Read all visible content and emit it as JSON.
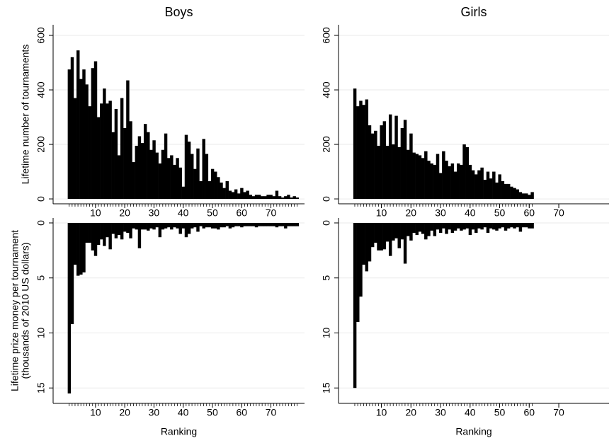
{
  "chart_data": [
    {
      "type": "bar",
      "title": "Boys",
      "ylabel": [
        "Lifetime number of tournaments"
      ],
      "color": "#000000",
      "grid": true,
      "x": [
        1,
        2,
        3,
        4,
        5,
        6,
        7,
        8,
        9,
        10,
        11,
        12,
        13,
        14,
        15,
        16,
        17,
        18,
        19,
        20,
        21,
        22,
        23,
        24,
        25,
        26,
        27,
        28,
        29,
        30,
        31,
        32,
        33,
        34,
        35,
        36,
        37,
        38,
        39,
        40,
        41,
        42,
        43,
        44,
        45,
        46,
        47,
        48,
        49,
        50,
        51,
        52,
        53,
        54,
        55,
        56,
        57,
        58,
        59,
        60,
        61,
        62,
        63,
        64,
        65,
        66,
        67,
        68,
        69,
        70,
        71,
        72,
        73,
        74,
        75,
        76,
        77,
        78,
        79
      ],
      "values": [
        475,
        520,
        370,
        545,
        440,
        475,
        420,
        340,
        480,
        505,
        300,
        350,
        405,
        350,
        360,
        245,
        330,
        160,
        370,
        260,
        435,
        285,
        135,
        195,
        230,
        205,
        275,
        245,
        180,
        215,
        170,
        130,
        180,
        240,
        150,
        160,
        125,
        150,
        115,
        45,
        235,
        210,
        165,
        110,
        185,
        65,
        220,
        165,
        65,
        110,
        100,
        80,
        60,
        40,
        65,
        30,
        25,
        35,
        20,
        40,
        25,
        30,
        15,
        10,
        15,
        15,
        10,
        10,
        15,
        15,
        10,
        30,
        10,
        5,
        10,
        15,
        5,
        10,
        5
      ],
      "xlim": [
        -4.5,
        81.5
      ],
      "xticks": [
        10,
        20,
        30,
        40,
        50,
        60,
        70
      ],
      "ylim": [
        -18,
        639
      ],
      "yticks": [
        0,
        200,
        400,
        600
      ]
    },
    {
      "type": "bar",
      "title": "Girls",
      "color": "#000000",
      "grid": true,
      "x": [
        1,
        2,
        3,
        4,
        5,
        6,
        7,
        8,
        9,
        10,
        11,
        12,
        13,
        14,
        15,
        16,
        17,
        18,
        19,
        20,
        21,
        22,
        23,
        24,
        25,
        26,
        27,
        28,
        29,
        30,
        31,
        32,
        33,
        34,
        35,
        36,
        37,
        38,
        39,
        40,
        41,
        42,
        43,
        44,
        45,
        46,
        47,
        48,
        49,
        50,
        51,
        52,
        53,
        54,
        55,
        56,
        57,
        58,
        59,
        60,
        61
      ],
      "values": [
        405,
        340,
        360,
        345,
        365,
        270,
        240,
        250,
        195,
        270,
        285,
        195,
        310,
        200,
        305,
        190,
        260,
        290,
        180,
        240,
        170,
        165,
        160,
        150,
        175,
        140,
        130,
        125,
        165,
        95,
        175,
        140,
        120,
        130,
        100,
        130,
        125,
        200,
        190,
        125,
        105,
        90,
        105,
        115,
        70,
        100,
        75,
        100,
        60,
        90,
        65,
        55,
        55,
        45,
        40,
        35,
        25,
        20,
        20,
        15,
        25
      ],
      "xlim": [
        -4.5,
        87
      ],
      "xticks": [
        10,
        20,
        30,
        40,
        50,
        60,
        70
      ],
      "ylim": [
        -18,
        639
      ],
      "yticks": [
        0,
        200,
        400,
        600
      ]
    },
    {
      "type": "bar",
      "ylabel": [
        "Lifetime prize money per tournament",
        "(thousands of 2010 US dollars)"
      ],
      "xlabel": "Ranking",
      "color": "#000000",
      "grid": true,
      "y_reversed": true,
      "x": [
        1,
        2,
        3,
        4,
        5,
        6,
        7,
        8,
        9,
        10,
        11,
        12,
        13,
        14,
        15,
        16,
        17,
        18,
        19,
        20,
        21,
        22,
        23,
        24,
        25,
        26,
        27,
        28,
        29,
        30,
        31,
        32,
        33,
        34,
        35,
        36,
        37,
        38,
        39,
        40,
        41,
        42,
        43,
        44,
        45,
        46,
        47,
        48,
        49,
        50,
        51,
        52,
        53,
        54,
        55,
        56,
        57,
        58,
        59,
        60,
        61,
        62,
        63,
        64,
        65,
        66,
        67,
        68,
        69,
        70,
        71,
        72,
        73,
        74,
        75,
        76,
        77,
        78,
        79
      ],
      "values": [
        15.5,
        9.2,
        3.8,
        4.8,
        4.7,
        4.5,
        1.8,
        1.8,
        2.5,
        3.0,
        2.0,
        1.5,
        2.1,
        1.3,
        2.4,
        1.0,
        1.4,
        1.1,
        1.5,
        0.8,
        0.9,
        1.4,
        0.5,
        0.6,
        2.3,
        0.6,
        0.6,
        0.7,
        0.5,
        0.6,
        0.4,
        1.3,
        0.6,
        0.5,
        0.4,
        0.6,
        0.4,
        0.5,
        1.0,
        0.5,
        1.3,
        1.0,
        0.5,
        0.4,
        0.8,
        0.3,
        0.5,
        0.4,
        0.4,
        0.5,
        0.5,
        0.6,
        0.4,
        0.4,
        0.3,
        0.5,
        0.4,
        0.3,
        0.3,
        0.4,
        0.3,
        0.3,
        0.3,
        0.3,
        0.4,
        0.3,
        0.3,
        0.3,
        0.3,
        0.3,
        0.3,
        0.4,
        0.3,
        0.3,
        0.5,
        0.3,
        0.3,
        0.3,
        0.3
      ],
      "xlim": [
        -4.5,
        81.5
      ],
      "xticks": [
        10,
        20,
        30,
        40,
        50,
        60,
        70
      ],
      "ylim": [
        -0.45,
        16.4
      ],
      "yticks": [
        0,
        5,
        10,
        15
      ]
    },
    {
      "type": "bar",
      "xlabel": "Ranking",
      "color": "#000000",
      "grid": true,
      "y_reversed": true,
      "x": [
        1,
        2,
        3,
        4,
        5,
        6,
        7,
        8,
        9,
        10,
        11,
        12,
        13,
        14,
        15,
        16,
        17,
        18,
        19,
        20,
        21,
        22,
        23,
        24,
        25,
        26,
        27,
        28,
        29,
        30,
        31,
        32,
        33,
        34,
        35,
        36,
        37,
        38,
        39,
        40,
        41,
        42,
        43,
        44,
        45,
        46,
        47,
        48,
        49,
        50,
        51,
        52,
        53,
        54,
        55,
        56,
        57,
        58,
        59,
        60,
        61
      ],
      "values": [
        15.0,
        9.0,
        6.7,
        3.8,
        4.4,
        3.5,
        2.2,
        1.8,
        2.5,
        2.5,
        2.4,
        1.7,
        3.0,
        1.6,
        1.4,
        2.3,
        1.5,
        3.7,
        1.2,
        1.6,
        0.9,
        1.1,
        0.8,
        1.0,
        1.5,
        1.2,
        0.7,
        1.2,
        0.6,
        0.9,
        0.5,
        1.0,
        0.6,
        0.9,
        0.7,
        0.5,
        0.7,
        0.6,
        0.5,
        1.1,
        0.6,
        0.9,
        0.5,
        0.6,
        0.4,
        0.9,
        0.5,
        0.6,
        0.7,
        0.5,
        0.4,
        0.7,
        0.5,
        0.4,
        0.5,
        0.4,
        0.8,
        0.4,
        0.4,
        0.5,
        0.5
      ],
      "xlim": [
        -4.5,
        87
      ],
      "xticks": [
        10,
        20,
        30,
        40,
        50,
        60,
        70
      ],
      "ylim": [
        -0.45,
        16.4
      ],
      "yticks": [
        0,
        5,
        10,
        15
      ]
    }
  ]
}
